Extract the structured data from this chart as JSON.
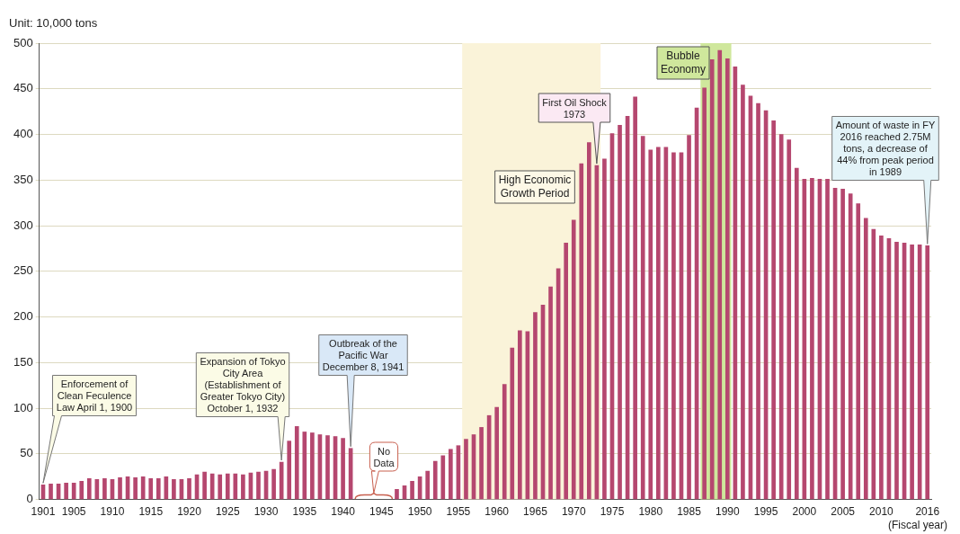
{
  "chart_data": {
    "type": "bar",
    "xlabel": "(Fiscal year)",
    "ylabel": "Unit: 10,000 tons",
    "x": [
      1901,
      1902,
      1903,
      1904,
      1905,
      1906,
      1907,
      1908,
      1909,
      1910,
      1911,
      1912,
      1913,
      1914,
      1915,
      1916,
      1917,
      1918,
      1919,
      1920,
      1921,
      1922,
      1923,
      1924,
      1925,
      1926,
      1927,
      1928,
      1929,
      1930,
      1931,
      1932,
      1933,
      1934,
      1935,
      1936,
      1937,
      1938,
      1939,
      1940,
      1941,
      1942,
      1943,
      1944,
      1945,
      1946,
      1947,
      1948,
      1949,
      1950,
      1951,
      1952,
      1953,
      1954,
      1955,
      1956,
      1957,
      1958,
      1959,
      1960,
      1961,
      1962,
      1963,
      1964,
      1965,
      1966,
      1967,
      1968,
      1969,
      1970,
      1971,
      1972,
      1973,
      1974,
      1975,
      1976,
      1977,
      1978,
      1979,
      1980,
      1981,
      1982,
      1983,
      1984,
      1985,
      1986,
      1987,
      1988,
      1989,
      1990,
      1991,
      1992,
      1993,
      1994,
      1995,
      1996,
      1997,
      1998,
      1999,
      2000,
      2001,
      2002,
      2003,
      2004,
      2005,
      2006,
      2007,
      2008,
      2009,
      2010,
      2011,
      2012,
      2013,
      2014,
      2015,
      2016
    ],
    "values": [
      16,
      17,
      17,
      18,
      18,
      20,
      23,
      22,
      23,
      22,
      24,
      25,
      24,
      25,
      23,
      23,
      25,
      22,
      22,
      23,
      27,
      30,
      28,
      27,
      28,
      28,
      27,
      29,
      30,
      31,
      33,
      41,
      64,
      80,
      74,
      73,
      71,
      70,
      69,
      67,
      56,
      null,
      null,
      null,
      null,
      null,
      11,
      15,
      20,
      25,
      31,
      42,
      48,
      55,
      59,
      66,
      71,
      79,
      92,
      101,
      126,
      166,
      185,
      184,
      205,
      213,
      233,
      253,
      281,
      306,
      368,
      391,
      366,
      373,
      401,
      410,
      420,
      441,
      398,
      383,
      386,
      386,
      380,
      380,
      399,
      429,
      451,
      482,
      492,
      483,
      474,
      454,
      442,
      434,
      426,
      415,
      400,
      394,
      363,
      351,
      352,
      351,
      351,
      341,
      340,
      335,
      324,
      308,
      296,
      289,
      286,
      282,
      281,
      279,
      279,
      278
    ],
    "color": "#b5476f",
    "xlim": [
      1900.5,
      2016.5
    ],
    "xticks": [
      1901,
      1905,
      1910,
      1915,
      1920,
      1925,
      1930,
      1935,
      1940,
      1945,
      1950,
      1955,
      1960,
      1965,
      1970,
      1975,
      1980,
      1985,
      1990,
      1995,
      2000,
      2005,
      2010,
      2016
    ],
    "ylim": [
      0,
      500
    ],
    "yticks": [
      0,
      50,
      100,
      150,
      200,
      250,
      300,
      350,
      400,
      450,
      500
    ],
    "grid": "y",
    "bands": [
      {
        "axis": "x",
        "from": 1955.5,
        "to": 1973.5,
        "label": "High Economic Growth Period",
        "color": "#faf3d9"
      },
      {
        "axis": "x",
        "from": 1986.5,
        "to": 1990.5,
        "label": "Bubble Economy",
        "color": "#cfe79c"
      }
    ],
    "annotations": [
      "Enforcement of Clean Feculence Law April 1, 1900",
      "Expansion of Tokyo City Area (Establishment of Greater Tokyo City) October 1, 1932",
      "Outbreak of the Pacific War December 8, 1941",
      "No Data",
      "First Oil Shock 1973",
      "Amount of waste in FY 2016 reached 2.75M tons, a decrease of 44% from peak period in 1989"
    ]
  }
}
